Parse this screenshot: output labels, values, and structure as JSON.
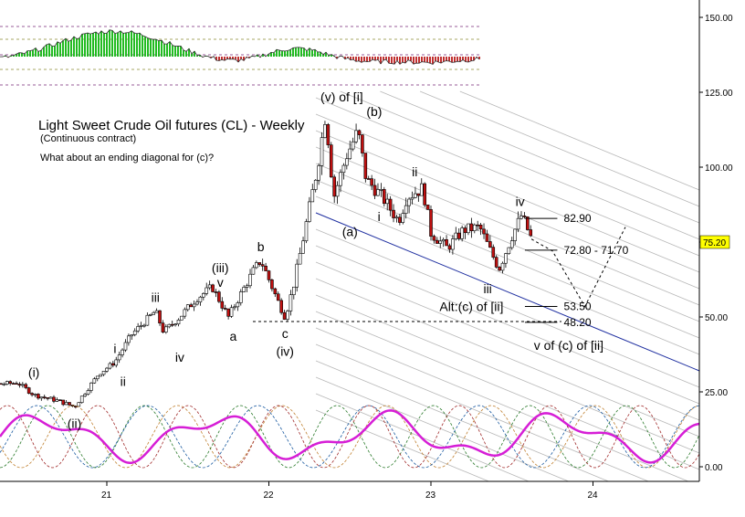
{
  "chart_data": {
    "type": "candlestick",
    "title": "Light Sweet Crude Oil futures (CL) - Weekly",
    "subtitle": "(Continuous contract)",
    "note": "What about an ending diagonal for (c)?",
    "y_ticks": [
      "150.00",
      "125.00",
      "100.00",
      "75.00",
      "50.00",
      "25.00",
      "0.00"
    ],
    "x_ticks": [
      "21",
      "22",
      "23",
      "24"
    ],
    "last_price": "75.20",
    "colors": {
      "up": "#ffffff",
      "down": "#c01010",
      "channel_line": "#1f2fa0",
      "fan_lines": "#b8b8b8",
      "price_tag": "#ffff00",
      "histogram_up": "#22bb22",
      "histogram_down": "#c03030",
      "cycle_main": "#d61ed6"
    },
    "price_path": [
      {
        "x": 20.0,
        "y": 22
      },
      {
        "x": 20.15,
        "y": 27
      },
      {
        "x": 20.45,
        "y": 28
      },
      {
        "x": 20.55,
        "y": 24
      },
      {
        "x": 20.7,
        "y": 22
      },
      {
        "x": 20.8,
        "y": 20
      },
      {
        "x": 20.95,
        "y": 31
      },
      {
        "x": 21.05,
        "y": 35
      },
      {
        "x": 21.15,
        "y": 44
      },
      {
        "x": 21.3,
        "y": 52
      },
      {
        "x": 21.35,
        "y": 45
      },
      {
        "x": 21.45,
        "y": 50
      },
      {
        "x": 21.55,
        "y": 56
      },
      {
        "x": 21.65,
        "y": 60
      },
      {
        "x": 21.75,
        "y": 50
      },
      {
        "x": 21.9,
        "y": 65
      },
      {
        "x": 21.95,
        "y": 69
      },
      {
        "x": 22.05,
        "y": 56
      },
      {
        "x": 22.1,
        "y": 50
      },
      {
        "x": 22.15,
        "y": 60
      },
      {
        "x": 22.2,
        "y": 73
      },
      {
        "x": 22.3,
        "y": 100
      },
      {
        "x": 22.35,
        "y": 118
      },
      {
        "x": 22.4,
        "y": 90
      },
      {
        "x": 22.48,
        "y": 104
      },
      {
        "x": 22.55,
        "y": 112
      },
      {
        "x": 22.6,
        "y": 96
      },
      {
        "x": 22.7,
        "y": 90
      },
      {
        "x": 22.8,
        "y": 82
      },
      {
        "x": 22.85,
        "y": 90
      },
      {
        "x": 22.95,
        "y": 93
      },
      {
        "x": 23.0,
        "y": 78
      },
      {
        "x": 23.1,
        "y": 73
      },
      {
        "x": 23.2,
        "y": 79
      },
      {
        "x": 23.3,
        "y": 80
      },
      {
        "x": 23.35,
        "y": 74
      },
      {
        "x": 23.42,
        "y": 66
      },
      {
        "x": 23.5,
        "y": 77
      },
      {
        "x": 23.56,
        "y": 84
      },
      {
        "x": 23.62,
        "y": 76
      }
    ],
    "projection": [
      {
        "x": 23.62,
        "y": 76
      },
      {
        "x": 23.75,
        "y": 72
      },
      {
        "x": 23.95,
        "y": 53.5
      },
      {
        "x": 24.2,
        "y": 80
      }
    ],
    "wave_labels": [
      {
        "text": "(i)",
        "x": 20.55,
        "y": 30
      },
      {
        "text": "(ii)",
        "x": 20.8,
        "y": 13
      },
      {
        "text": "i",
        "x": 21.05,
        "y": 38
      },
      {
        "text": "ii",
        "x": 21.1,
        "y": 27
      },
      {
        "text": "iii",
        "x": 21.3,
        "y": 55
      },
      {
        "text": "iv",
        "x": 21.45,
        "y": 35
      },
      {
        "text": "(iii)",
        "x": 21.7,
        "y": 65
      },
      {
        "text": "v",
        "x": 21.7,
        "y": 60
      },
      {
        "text": "a",
        "x": 21.78,
        "y": 42
      },
      {
        "text": "b",
        "x": 21.95,
        "y": 72
      },
      {
        "text": "c",
        "x": 22.1,
        "y": 43
      },
      {
        "text": "(iv)",
        "x": 22.1,
        "y": 37
      },
      {
        "text": "(v) of [i]",
        "x": 22.45,
        "y": 122
      },
      {
        "text": "(b)",
        "x": 22.65,
        "y": 117
      },
      {
        "text": "(a)",
        "x": 22.5,
        "y": 77
      },
      {
        "text": "i",
        "x": 22.68,
        "y": 82
      },
      {
        "text": "ii",
        "x": 22.9,
        "y": 97
      },
      {
        "text": "iii",
        "x": 23.35,
        "y": 58
      },
      {
        "text": "iv",
        "x": 23.55,
        "y": 87
      },
      {
        "text": "Alt:(c) of [ii]",
        "x": 23.25,
        "y": 52
      },
      {
        "text": "v of (c) of [ii]",
        "x": 23.85,
        "y": 39
      }
    ],
    "price_levels": [
      {
        "text": "82.90",
        "y": 82.9
      },
      {
        "text": "72.80 - 71.70",
        "y": 72.3
      },
      {
        "text": "53.50",
        "y": 53.5
      },
      {
        "text": "48.20",
        "y": 48.2
      }
    ],
    "grid": false
  }
}
